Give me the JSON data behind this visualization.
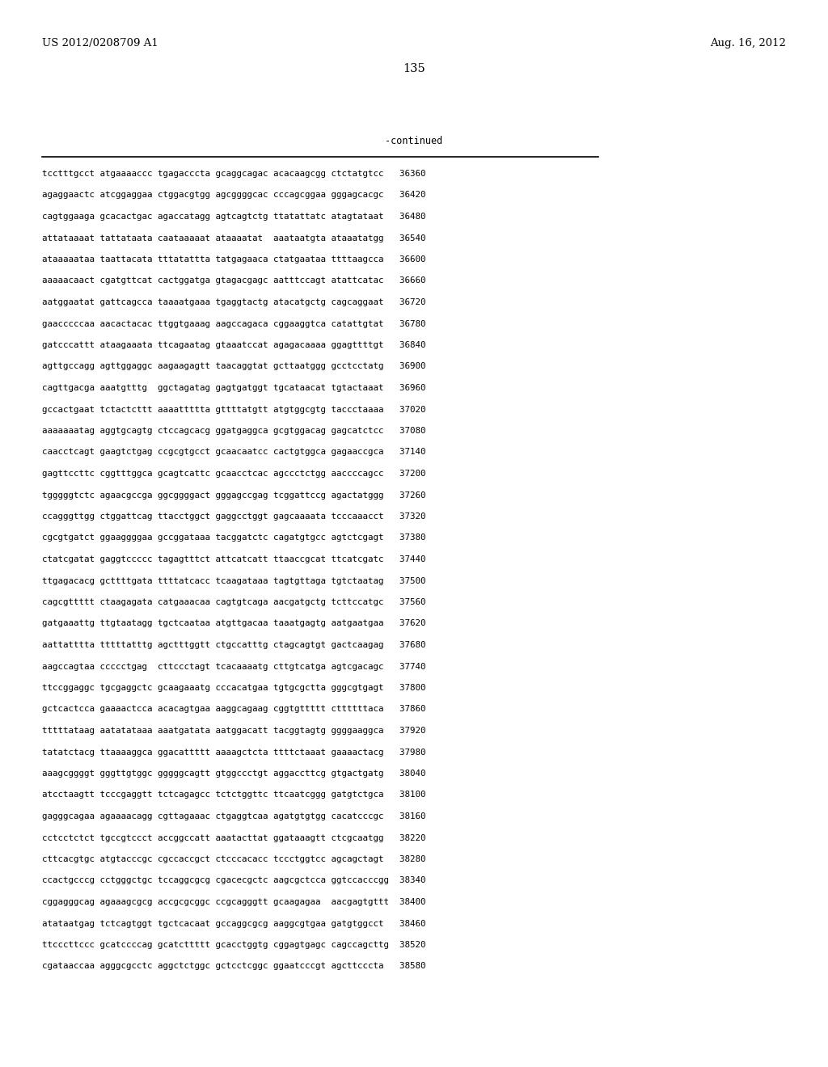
{
  "header_left": "US 2012/0208709 A1",
  "header_right": "Aug. 16, 2012",
  "page_number": "135",
  "continued_label": "-continued",
  "background_color": "#ffffff",
  "text_color": "#000000",
  "seq_font_size": 7.8,
  "header_font_size": 9.5,
  "page_num_font_size": 10.5,
  "continued_font_size": 8.5,
  "sequence_lines": [
    "tcctttgcct atgaaaaccc tgagacccta gcaggcagac acacaagcgg ctctatgtcc   36360",
    "agaggaactc atcggaggaa ctggacgtgg agcggggcac cccagcggaa gggagcacgc   36420",
    "cagtggaaga gcacactgac agaccatagg agtcagtctg ttatattatc atagtataat   36480",
    "attataaaat tattataata caataaaaat ataaaatat  aaataatgta ataaatatgg   36540",
    "ataaaaataa taattacata tttatattta tatgagaaca ctatgaataa ttttaagcca   36600",
    "aaaaacaact cgatgttcat cactggatga gtagacgagc aatttccagt atattcatac   36660",
    "aatggaatat gattcagcca taaaatgaaa tgaggtactg atacatgctg cagcaggaat   36720",
    "gaacccccaa aacactacac ttggtgaaag aagccagaca cggaaggtca catattgtat   36780",
    "gatcccattt ataagaaata ttcagaatag gtaaatccat agagacaaaa ggagttttgt   36840",
    "agttgccagg agttggaggc aagaagagtt taacaggtat gcttaatggg gcctcctatg   36900",
    "cagttgacga aaatgtttg  ggctagatag gagtgatggt tgcataacat tgtactaaat   36960",
    "gccactgaat tctactcttt aaaattttta gttttatgtt atgtggcgtg taccctaaaa   37020",
    "aaaaaaatag aggtgcagtg ctccagcacg ggatgaggca gcgtggacag gagcatctcc   37080",
    "caacctcagt gaagtctgag ccgcgtgcct gcaacaatcc cactgtggca gagaaccgca   37140",
    "gagttccttc cggtttggca gcagtcattc gcaacctcac agccctctgg aaccccagcc   37200",
    "tgggggtctc agaacgccga ggcggggact gggagccgag tcggattccg agactatggg   37260",
    "ccagggttgg ctggattcag ttacctggct gaggcctggt gagcaaaata tcccaaacct   37320",
    "cgcgtgatct ggaaggggaa gccggataaa tacggatctc cagatgtgcc agtctcgagt   37380",
    "ctatcgatat gaggtccccc tagagtttct attcatcatt ttaaccgcat ttcatcgatc   37440",
    "ttgagacacg gcttttgata ttttatcacc tcaagataaa tagtgttaga tgtctaatag   37500",
    "cagcgttttt ctaagagata catgaaacaa cagtgtcaga aacgatgctg tcttccatgc   37560",
    "gatgaaattg ttgtaatagg tgctcaataa atgttgacaa taaatgagtg aatgaatgaa   37620",
    "aattatttta tttttatttg agctttggtt ctgccatttg ctagcagtgt gactcaagag   37680",
    "aagccagtaa ccccctgag  cttccctagt tcacaaaatg cttgtcatga agtcgacagc   37740",
    "ttccggaggc tgcgaggctc gcaagaaatg cccacatgaa tgtgcgctta gggcgtgagt   37800",
    "gctcactcca gaaaactcca acacagtgaa aaggcagaag cggtgttttt cttttttaca   37860",
    "tttttataag aatatataaa aaatgatata aatggacatt tacggtagtg ggggaaggca   37920",
    "tatatctacg ttaaaaggca ggacattttt aaaagctcta ttttctaaat gaaaactacg   37980",
    "aaagcggggt gggttgtggc gggggcagtt gtggccctgt aggaccttcg gtgactgatg   38040",
    "atcctaagtt tcccgaggtt tctcagagcc tctctggttc ttcaatcggg gatgtctgca   38100",
    "gagggcagaa agaaaacagg cgttagaaac ctgaggtcaa agatgtgtgg cacatcccgc   38160",
    "cctcctctct tgccgtccct accggccatt aaatacttat ggataaagtt ctcgcaatgg   38220",
    "cttcacgtgc atgtacccgc cgccaccgct ctcccacacc tccctggtcc agcagctagt   38280",
    "ccactgcccg cctgggctgc tccaggcgcg cgacecgctc aagcgctcca ggtccacccgg  38340",
    "cggagggcag agaaagcgcg accgcgcggc ccgcagggtt gcaagagaa  aacgagtgttt  38400",
    "atataatgag tctcagtggt tgctcacaat gccaggcgcg aaggcgtgaa gatgtggcct   38460",
    "ttcccttccc gcatccccag gcatcttttt gcacctggtg cggagtgagc cagccagcttg  38520",
    "cgataaccaa agggcgcctc aggctctggc gctcctcggc ggaatcccgt agcttcccta   38580"
  ]
}
